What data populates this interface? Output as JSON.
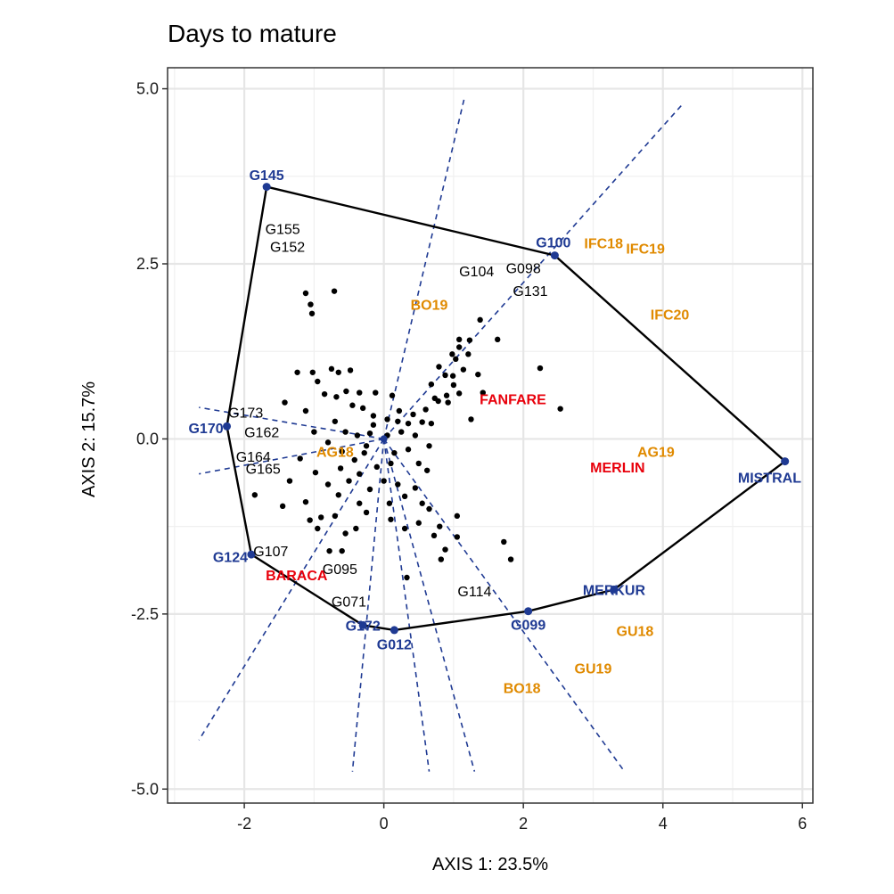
{
  "chart_data": {
    "type": "scatter",
    "title": "Days to mature",
    "xlabel": "AXIS 1: 23.5%",
    "ylabel": "AXIS 2: 15.7%",
    "xlim": [
      -3.1,
      6.15
    ],
    "ylim": [
      -5.2,
      5.3
    ],
    "x_ticks": [
      {
        "value": -2,
        "label": "-2"
      },
      {
        "value": 0,
        "label": "0"
      },
      {
        "value": 2,
        "label": "2"
      },
      {
        "value": 4,
        "label": "4"
      },
      {
        "value": 6,
        "label": "6"
      }
    ],
    "y_ticks": [
      {
        "value": 5,
        "label": "5.0"
      },
      {
        "value": 2.5,
        "label": "2.5"
      },
      {
        "value": 0,
        "label": "0.0"
      },
      {
        "value": -2.5,
        "label": "-2.5"
      },
      {
        "value": -5,
        "label": "-5.0"
      }
    ],
    "grid": true,
    "colors": {
      "hull": "#000000",
      "rays": "#1f3a93",
      "vertex": "#1f3a93",
      "environment": "#e08a00",
      "check": "#e8000b",
      "genotype": "#000000"
    },
    "hull": [
      [
        -1.68,
        3.6
      ],
      [
        2.45,
        2.62
      ],
      [
        5.75,
        -0.32
      ],
      [
        3.3,
        -2.15
      ],
      [
        2.07,
        -2.46
      ],
      [
        0.15,
        -2.73
      ],
      [
        -0.3,
        -2.66
      ],
      [
        -1.9,
        -1.65
      ],
      [
        -2.25,
        0.18
      ]
    ],
    "rays": [
      {
        "from": [
          0,
          0
        ],
        "to": [
          4.3,
          4.8
        ]
      },
      {
        "from": [
          0,
          0
        ],
        "to": [
          1.15,
          4.85
        ]
      },
      {
        "from": [
          0,
          0
        ],
        "to": [
          -2.65,
          0.45
        ]
      },
      {
        "from": [
          0,
          0
        ],
        "to": [
          -2.65,
          -0.5
        ]
      },
      {
        "from": [
          0,
          0
        ],
        "to": [
          -2.65,
          -4.3
        ]
      },
      {
        "from": [
          0,
          0
        ],
        "to": [
          -0.45,
          -4.75
        ]
      },
      {
        "from": [
          0,
          0
        ],
        "to": [
          0.65,
          -4.75
        ]
      },
      {
        "from": [
          0,
          0
        ],
        "to": [
          1.3,
          -4.75
        ]
      },
      {
        "from": [
          0,
          0
        ],
        "to": [
          3.45,
          -4.75
        ]
      }
    ],
    "vertex_genotypes": [
      {
        "label": "G145",
        "x": -1.68,
        "y": 3.6,
        "lx": -1.68,
        "ly": 3.77
      },
      {
        "label": "G100",
        "x": 2.45,
        "y": 2.62,
        "lx": 2.43,
        "ly": 2.81
      },
      {
        "label": "MISTRAL",
        "x": 5.75,
        "y": -0.32,
        "lx": 5.53,
        "ly": -0.55
      },
      {
        "label": "MERKUR",
        "x": 3.3,
        "y": -2.15,
        "lx": 3.3,
        "ly": -2.15
      },
      {
        "label": "G099",
        "x": 2.07,
        "y": -2.46,
        "lx": 2.07,
        "ly": -2.65
      },
      {
        "label": "G012",
        "x": 0.15,
        "y": -2.73,
        "lx": 0.15,
        "ly": -2.93
      },
      {
        "label": "G172",
        "x": -0.3,
        "y": -2.66,
        "lx": -0.3,
        "ly": -2.66
      },
      {
        "label": "G124",
        "x": -1.9,
        "y": -1.65,
        "lx": -2.2,
        "ly": -1.68
      },
      {
        "label": "G170",
        "x": -2.25,
        "y": 0.18,
        "lx": -2.55,
        "ly": 0.16
      }
    ],
    "environments": [
      {
        "label": "IFC18",
        "x": 3.15,
        "y": 2.8
      },
      {
        "label": "IFC19",
        "x": 3.75,
        "y": 2.72
      },
      {
        "label": "IFC20",
        "x": 4.1,
        "y": 1.78
      },
      {
        "label": "BO19",
        "x": 0.65,
        "y": 1.92
      },
      {
        "label": "AG18",
        "x": -0.7,
        "y": -0.18
      },
      {
        "label": "AG19",
        "x": 3.9,
        "y": -0.18
      },
      {
        "label": "GU18",
        "x": 3.6,
        "y": -2.74
      },
      {
        "label": "GU19",
        "x": 3.0,
        "y": -3.27
      },
      {
        "label": "BO18",
        "x": 1.98,
        "y": -3.55
      }
    ],
    "checks": [
      {
        "label": "FANFARE",
        "x": 1.85,
        "y": 0.57
      },
      {
        "label": "MERLIN",
        "x": 3.35,
        "y": -0.4
      },
      {
        "label": "BARACA",
        "x": -1.25,
        "y": -1.94
      }
    ],
    "labeled_genotypes": [
      {
        "label": "G155",
        "x": -1.45,
        "y": 3.0
      },
      {
        "label": "G152",
        "x": -1.38,
        "y": 2.75
      },
      {
        "label": "G104",
        "x": 1.33,
        "y": 2.4
      },
      {
        "label": "G098",
        "x": 2.0,
        "y": 2.44
      },
      {
        "label": "G131",
        "x": 2.1,
        "y": 2.12
      },
      {
        "label": "G173",
        "x": -1.98,
        "y": 0.38
      },
      {
        "label": "G162",
        "x": -1.75,
        "y": 0.1
      },
      {
        "label": "G164",
        "x": -1.87,
        "y": -0.25
      },
      {
        "label": "G165",
        "x": -1.73,
        "y": -0.42
      },
      {
        "label": "G107",
        "x": -1.62,
        "y": -1.6
      },
      {
        "label": "G095",
        "x": -0.63,
        "y": -1.85
      },
      {
        "label": "G071",
        "x": -0.5,
        "y": -2.32
      },
      {
        "label": "G114",
        "x": 1.3,
        "y": -2.17
      }
    ],
    "genotype_points": [
      [
        -1.12,
        2.08
      ],
      [
        -1.05,
        1.92
      ],
      [
        -1.03,
        1.79
      ],
      [
        -0.71,
        2.11
      ],
      [
        1.38,
        1.7
      ],
      [
        1.08,
        1.42
      ],
      [
        1.08,
        1.31
      ],
      [
        1.23,
        1.41
      ],
      [
        1.63,
        1.42
      ],
      [
        0.98,
        1.21
      ],
      [
        1.03,
        1.14
      ],
      [
        1.21,
        1.21
      ],
      [
        0.79,
        1.03
      ],
      [
        0.88,
        0.91
      ],
      [
        0.99,
        0.9
      ],
      [
        1.14,
        0.99
      ],
      [
        1.35,
        0.92
      ],
      [
        2.24,
        1.01
      ],
      [
        0.68,
        0.78
      ],
      [
        0.73,
        0.58
      ],
      [
        0.6,
        0.42
      ],
      [
        0.78,
        0.54
      ],
      [
        0.9,
        0.62
      ],
      [
        1.0,
        0.77
      ],
      [
        1.08,
        0.65
      ],
      [
        2.53,
        0.43
      ],
      [
        1.42,
        0.66
      ],
      [
        -1.24,
        0.95
      ],
      [
        -1.02,
        0.95
      ],
      [
        -0.75,
        1.0
      ],
      [
        -0.65,
        0.95
      ],
      [
        -0.48,
        0.98
      ],
      [
        -0.95,
        0.82
      ],
      [
        -0.85,
        0.64
      ],
      [
        -0.68,
        0.6
      ],
      [
        -0.54,
        0.68
      ],
      [
        -0.35,
        0.66
      ],
      [
        -0.12,
        0.66
      ],
      [
        0.12,
        0.62
      ],
      [
        -0.45,
        0.48
      ],
      [
        -0.3,
        0.44
      ],
      [
        -0.15,
        0.33
      ],
      [
        0.05,
        0.28
      ],
      [
        0.2,
        0.25
      ],
      [
        0.35,
        0.22
      ],
      [
        0.55,
        0.24
      ],
      [
        -0.7,
        0.25
      ],
      [
        -0.55,
        0.1
      ],
      [
        -0.38,
        0.05
      ],
      [
        -0.2,
        0.08
      ],
      [
        0.05,
        0.05
      ],
      [
        0.25,
        0.1
      ],
      [
        0.45,
        0.05
      ],
      [
        -1.12,
        0.4
      ],
      [
        -1.42,
        0.52
      ],
      [
        -0.8,
        -0.05
      ],
      [
        -0.6,
        -0.18
      ],
      [
        -0.42,
        -0.3
      ],
      [
        -0.28,
        -0.2
      ],
      [
        0.15,
        -0.2
      ],
      [
        0.35,
        -0.15
      ],
      [
        0.5,
        -0.35
      ],
      [
        0.62,
        -0.45
      ],
      [
        -1.2,
        -0.28
      ],
      [
        -1.35,
        -0.6
      ],
      [
        -1.12,
        -0.9
      ],
      [
        -1.45,
        -0.96
      ],
      [
        -0.98,
        -0.48
      ],
      [
        -0.8,
        -0.65
      ],
      [
        -0.65,
        -0.8
      ],
      [
        -0.5,
        -0.6
      ],
      [
        -0.35,
        -0.5
      ],
      [
        -0.2,
        -0.72
      ],
      [
        0.0,
        -0.6
      ],
      [
        0.2,
        -0.65
      ],
      [
        0.3,
        -0.82
      ],
      [
        0.45,
        -0.7
      ],
      [
        0.55,
        -0.92
      ],
      [
        -0.9,
        -1.12
      ],
      [
        -0.7,
        -1.1
      ],
      [
        -0.55,
        -1.35
      ],
      [
        -0.4,
        -1.28
      ],
      [
        -0.25,
        -1.05
      ],
      [
        0.1,
        -1.15
      ],
      [
        0.3,
        -1.28
      ],
      [
        0.5,
        -1.2
      ],
      [
        0.65,
        -1.0
      ],
      [
        0.8,
        -1.25
      ],
      [
        1.05,
        -1.1
      ],
      [
        1.05,
        -1.4
      ],
      [
        0.72,
        -1.38
      ],
      [
        0.88,
        -1.58
      ],
      [
        1.72,
        -1.47
      ],
      [
        1.82,
        -1.72
      ],
      [
        0.82,
        -1.72
      ],
      [
        0.33,
        -1.98
      ],
      [
        -1.85,
        -0.8
      ],
      [
        -1.06,
        -1.16
      ],
      [
        -0.95,
        -1.28
      ],
      [
        -0.6,
        -1.6
      ],
      [
        -0.78,
        -1.6
      ],
      [
        -0.1,
        -0.4
      ],
      [
        0.1,
        -0.35
      ],
      [
        -0.15,
        0.2
      ],
      [
        0.22,
        0.4
      ],
      [
        0.42,
        0.35
      ],
      [
        -0.62,
        -0.42
      ],
      [
        0.08,
        -0.92
      ],
      [
        -0.35,
        -0.92
      ],
      [
        1.25,
        0.28
      ],
      [
        0.92,
        0.52
      ],
      [
        0.68,
        0.22
      ],
      [
        -1.0,
        0.1
      ],
      [
        -0.25,
        -0.1
      ],
      [
        0.65,
        -0.1
      ]
    ]
  }
}
